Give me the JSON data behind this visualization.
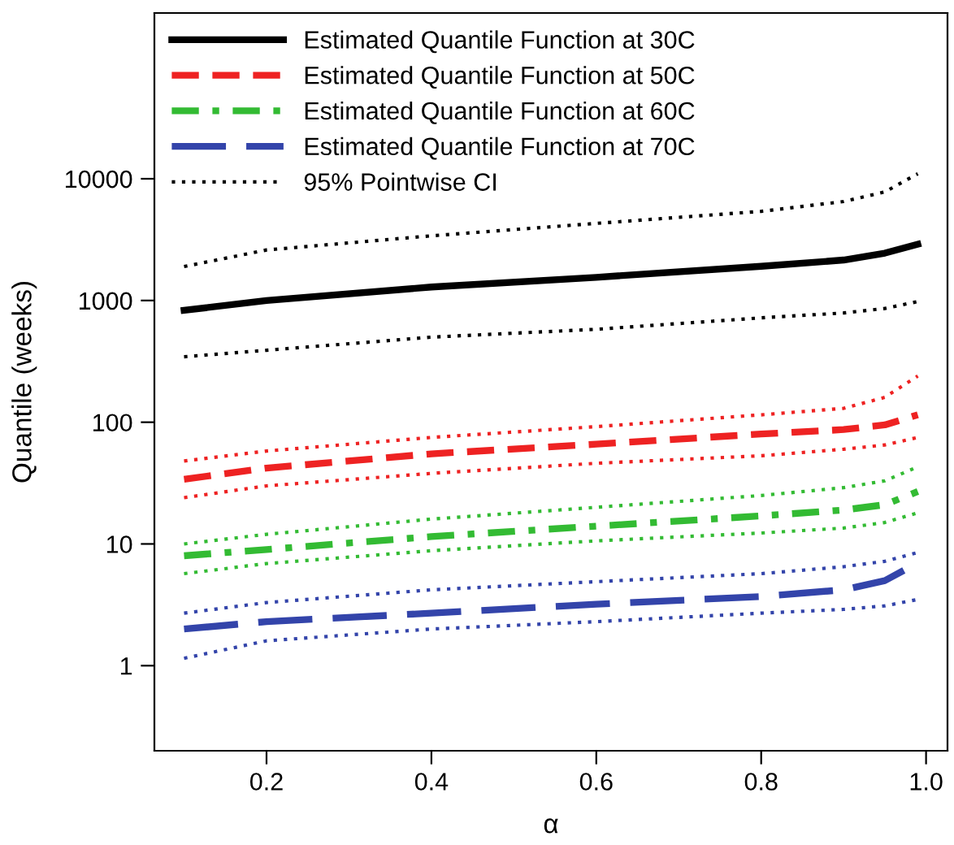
{
  "chart_data": {
    "type": "line",
    "xlabel": "α",
    "ylabel": "Quantile (weeks)",
    "log": "y",
    "x": [
      0.1,
      0.2,
      0.4,
      0.6,
      0.8,
      0.9,
      0.95,
      0.99
    ],
    "xlim": [
      0.064,
      1.026
    ],
    "xticks": [
      {
        "value": 0.2,
        "label": "0.2"
      },
      {
        "value": 0.4,
        "label": "0.4"
      },
      {
        "value": 0.6,
        "label": "0.6"
      },
      {
        "value": 0.8,
        "label": "0.8"
      },
      {
        "value": 1.0,
        "label": "1.0"
      }
    ],
    "ylim": [
      0.2,
      230000
    ],
    "yticks": [
      1,
      10,
      100,
      1000,
      10000
    ],
    "grid": false,
    "legend": "top left",
    "marker": "none",
    "series": [
      {
        "name": "Estimated Quantile Function at 30C",
        "color": "#000000",
        "line_style": "solid",
        "values": [
          830,
          1000,
          1290,
          1550,
          1910,
          2150,
          2450,
          2900
        ]
      },
      {
        "name": "Estimated Quantile Function at 50C",
        "color": "#ee2222",
        "line_style": "dashed",
        "values": [
          34,
          42,
          55,
          66,
          80,
          87,
          95,
          115
        ]
      },
      {
        "name": "Estimated Quantile Function at 60C",
        "color": "#33bb33",
        "line_style": "dashdot",
        "values": [
          8,
          9,
          11.5,
          14,
          17,
          19,
          21,
          27
        ]
      },
      {
        "name": "Estimated Quantile Function at 70C",
        "color": "#3344aa",
        "line_style": "longdash",
        "values": [
          2.0,
          2.3,
          2.7,
          3.2,
          3.7,
          4.2,
          5,
          7
        ]
      },
      {
        "name": "95% Pointwise CI",
        "color": "#000000",
        "line_style": "dotted",
        "values": [
          1900,
          2600,
          3400,
          4300,
          5400,
          6500,
          7800,
          11000
        ]
      },
      {
        "color": "#000000",
        "line_style": "dotted",
        "values": [
          345,
          390,
          500,
          580,
          720,
          790,
          860,
          980
        ]
      },
      {
        "color": "#ee2222",
        "line_style": "dotted",
        "values": [
          48,
          58,
          75,
          92,
          115,
          130,
          160,
          240
        ]
      },
      {
        "color": "#ee2222",
        "line_style": "dotted",
        "values": [
          24,
          30,
          38,
          46,
          53,
          60,
          65,
          75
        ]
      },
      {
        "color": "#33bb33",
        "line_style": "dotted",
        "values": [
          10,
          12,
          16,
          20,
          25,
          29,
          33,
          43
        ]
      },
      {
        "color": "#33bb33",
        "line_style": "dotted",
        "values": [
          5.7,
          6.9,
          8.8,
          10.6,
          12.3,
          13.5,
          15,
          18
        ]
      },
      {
        "color": "#3344aa",
        "line_style": "dotted",
        "values": [
          2.7,
          3.3,
          4.2,
          4.9,
          5.7,
          6.5,
          7.2,
          8.5
        ]
      },
      {
        "color": "#3344aa",
        "line_style": "dotted",
        "values": [
          1.15,
          1.6,
          2.0,
          2.3,
          2.7,
          2.9,
          3.1,
          3.5
        ]
      }
    ]
  }
}
